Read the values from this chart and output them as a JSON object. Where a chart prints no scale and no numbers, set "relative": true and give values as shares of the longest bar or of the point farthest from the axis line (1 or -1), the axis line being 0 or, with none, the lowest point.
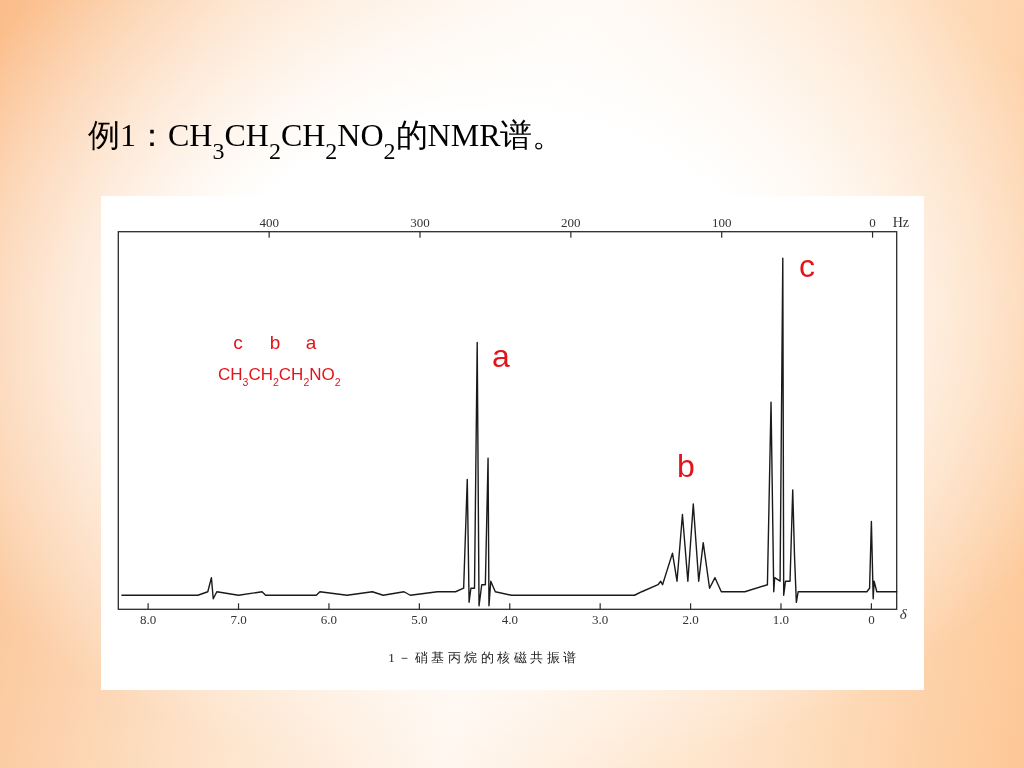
{
  "chart_data": {
    "type": "line",
    "title": "例1：CH$_{3}$CH$_{2}$CH$_{2}$NO$_{2}$的NMR谱。",
    "xlabel": "δ",
    "x2label": "Hz",
    "relative": true,
    "color": "#1a1a1a",
    "line_style": "solid",
    "xlim": [
      8.33,
      -0.28
    ],
    "xticks": [
      {
        "value": 8,
        "label": "8.0"
      },
      {
        "value": 7,
        "label": "7.0"
      },
      {
        "value": 6,
        "label": "6.0"
      },
      {
        "value": 5,
        "label": "5.0"
      },
      {
        "value": 4,
        "label": "4.0"
      },
      {
        "value": 3,
        "label": "3.0"
      },
      {
        "value": 2,
        "label": "2.0"
      },
      {
        "value": 1,
        "label": "1.0"
      },
      0
    ],
    "x2lim": [
      500,
      -16
    ],
    "x2ticks": [
      400,
      300,
      200,
      100,
      0
    ],
    "x": [
      8.29,
      8.05,
      7.75,
      7.45,
      7.34,
      7.3,
      7.28,
      7.24,
      7.0,
      6.74,
      6.7,
      6.4,
      6.14,
      6.1,
      5.8,
      5.52,
      5.4,
      5.17,
      5.1,
      4.8,
      4.6,
      4.51,
      4.47,
      4.45,
      4.43,
      4.39,
      4.36,
      4.34,
      4.31,
      4.27,
      4.24,
      4.23,
      4.21,
      4.16,
      3.98,
      3.48,
      3.0,
      2.62,
      2.54,
      2.36,
      2.33,
      2.31,
      2.2,
      2.15,
      2.09,
      2.03,
      1.97,
      1.91,
      1.86,
      1.79,
      1.73,
      1.66,
      1.4,
      1.15,
      1.11,
      1.08,
      1.07,
      1.01,
      0.98,
      0.97,
      0.95,
      0.9,
      0.87,
      0.85,
      0.83,
      0.81,
      0.67,
      0.39,
      0.05,
      0.02,
      0.0,
      -0.02,
      -0.03,
      -0.06,
      -0.28
    ],
    "values": [
      0.04,
      0.04,
      0.04,
      0.04,
      0.05,
      0.09,
      0.03,
      0.05,
      0.04,
      0.05,
      0.04,
      0.04,
      0.04,
      0.05,
      0.04,
      0.05,
      0.04,
      0.05,
      0.04,
      0.05,
      0.05,
      0.06,
      0.37,
      0.02,
      0.06,
      0.06,
      0.76,
      0.01,
      0.07,
      0.07,
      0.43,
      0.01,
      0.08,
      0.05,
      0.04,
      0.04,
      0.04,
      0.04,
      0.05,
      0.07,
      0.08,
      0.07,
      0.16,
      0.08,
      0.27,
      0.08,
      0.3,
      0.08,
      0.19,
      0.06,
      0.09,
      0.05,
      0.05,
      0.07,
      0.59,
      0.05,
      0.09,
      0.08,
      1,
      0.04,
      0.08,
      0.08,
      0.34,
      0.15,
      0.02,
      0.05,
      0.05,
      0.05,
      0.05,
      0.06,
      0.25,
      0.03,
      0.08,
      0.05,
      0.05
    ],
    "annotations": [
      "c",
      "b",
      "a",
      "CH$_{3}$CH$_{2}$CH$_{2}$NO$_{2}$",
      "a",
      "b",
      "c",
      "1－硝基丙烷的核磁共振谱"
    ]
  }
}
